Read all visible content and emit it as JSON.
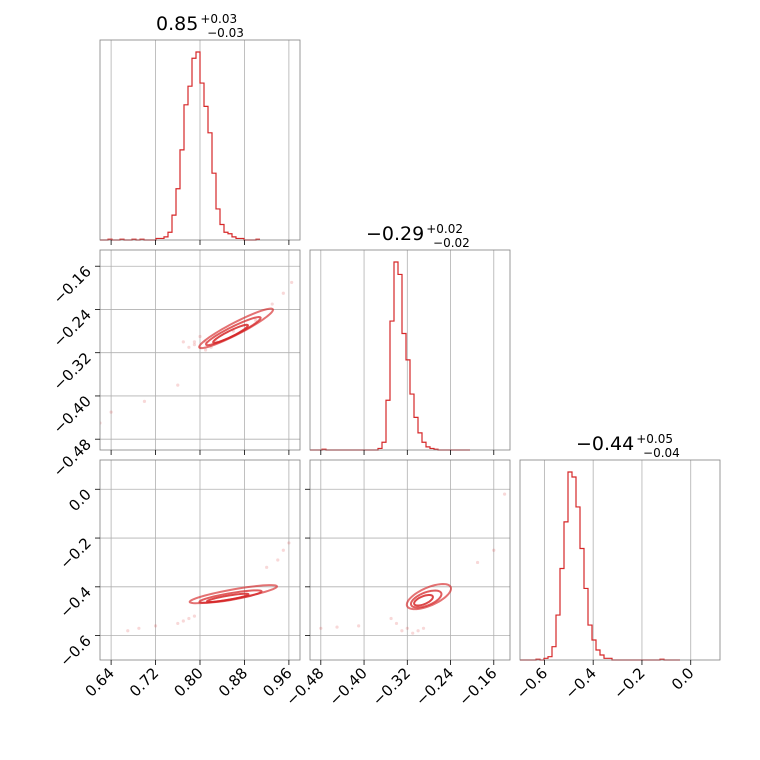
{
  "chart_data": {
    "type": "corner",
    "color": "#d62728",
    "parameters": [
      {
        "title_main": "0.85",
        "title_plus": "+0.03",
        "title_minus": "−0.03",
        "range": [
          0.62,
          0.98
        ],
        "ticks": [
          {
            "value": 0.64,
            "label": "0.64"
          },
          {
            "value": 0.72,
            "label": "0.72"
          },
          {
            "value": 0.8,
            "label": "0.80"
          },
          {
            "value": 0.88,
            "label": "0.88"
          },
          {
            "value": 0.96,
            "label": "0.96"
          }
        ],
        "hist_bin_width": 0.0072,
        "hist_start": 0.62,
        "hist_counts": [
          0,
          0,
          0.5,
          0,
          0,
          0.5,
          0,
          0,
          0.5,
          0,
          0.5,
          0,
          0,
          0,
          1,
          1,
          2,
          5,
          16,
          33,
          58,
          87,
          99,
          117,
          121,
          101,
          86,
          69,
          43,
          20,
          10,
          5,
          4,
          2,
          1,
          1,
          0,
          0,
          0,
          0.5
        ]
      },
      {
        "title_main": "−0.29",
        "title_plus": "+0.02",
        "title_minus": "−0.02",
        "range": [
          -0.5,
          -0.13
        ],
        "ticks": [
          {
            "value": -0.48,
            "label": "−0.48"
          },
          {
            "value": -0.4,
            "label": "−0.40"
          },
          {
            "value": -0.32,
            "label": "−0.32"
          },
          {
            "value": -0.24,
            "label": "−0.24"
          },
          {
            "value": -0.16,
            "label": "−0.16"
          }
        ],
        "hist_bin_width": 0.0074,
        "hist_start": -0.5,
        "hist_counts": [
          0,
          0,
          0,
          0.5,
          0,
          0,
          0,
          0,
          0,
          0,
          0,
          0,
          0,
          0,
          0,
          0,
          0,
          1,
          5,
          32,
          83,
          121,
          113,
          75,
          58,
          36,
          21,
          11,
          5,
          2,
          1,
          0.5,
          0,
          0,
          0,
          0,
          0,
          0,
          0,
          0
        ]
      },
      {
        "title_main": "−0.44",
        "title_plus": "+0.05",
        "title_minus": "−0.04",
        "range": [
          -0.7,
          0.12
        ],
        "ticks": [
          {
            "value": -0.6,
            "label": "−0.6"
          },
          {
            "value": -0.4,
            "label": "−0.4"
          },
          {
            "value": -0.2,
            "label": "−0.2"
          },
          {
            "value": 0.0,
            "label": "0.0"
          }
        ],
        "hist_bin_width": 0.0164,
        "hist_start": -0.7,
        "hist_counts": [
          0,
          0,
          0,
          0,
          0.5,
          0,
          1,
          2,
          8,
          27,
          55,
          83,
          113,
          110,
          92,
          67,
          43,
          21,
          12,
          6,
          3,
          1,
          1,
          0,
          0,
          0,
          0,
          0,
          0,
          0,
          0,
          0,
          0,
          0,
          0,
          0.5,
          0,
          0,
          0,
          0
        ]
      }
    ],
    "pairs": [
      {
        "x_param": 0,
        "y_param": 1,
        "scatter": [
          [
            0.62,
            -0.45
          ],
          [
            0.64,
            -0.43
          ],
          [
            0.7,
            -0.41
          ],
          [
            0.76,
            -0.38
          ],
          [
            0.79,
            -0.3
          ],
          [
            0.8,
            -0.31
          ],
          [
            0.81,
            -0.3
          ],
          [
            0.78,
            -0.31
          ],
          [
            0.82,
            -0.31
          ],
          [
            0.77,
            -0.3
          ],
          [
            0.8,
            -0.29
          ],
          [
            0.83,
            -0.3
          ],
          [
            0.86,
            -0.28
          ],
          [
            0.9,
            -0.26
          ],
          [
            0.93,
            -0.23
          ],
          [
            0.95,
            -0.21
          ],
          [
            0.965,
            -0.19
          ],
          [
            0.79,
            -0.305
          ],
          [
            0.81,
            -0.315
          ]
        ],
        "contours": [
          {
            "center": [
              0.855,
              -0.285
            ],
            "half_major": 0.035,
            "half_minor": 0.0055,
            "angle_deg": 27
          },
          {
            "center": [
              0.86,
              -0.28
            ],
            "half_major": 0.055,
            "half_minor": 0.008,
            "angle_deg": 27
          },
          {
            "center": [
              0.865,
              -0.275
            ],
            "half_major": 0.075,
            "half_minor": 0.011,
            "angle_deg": 28
          }
        ]
      },
      {
        "x_param": 0,
        "y_param": 2,
        "scatter": [
          [
            0.67,
            -0.58
          ],
          [
            0.69,
            -0.57
          ],
          [
            0.72,
            -0.56
          ],
          [
            0.76,
            -0.55
          ],
          [
            0.77,
            -0.54
          ],
          [
            0.78,
            -0.53
          ],
          [
            0.79,
            -0.52
          ],
          [
            0.92,
            -0.32
          ],
          [
            0.94,
            -0.29
          ],
          [
            0.96,
            -0.22
          ],
          [
            0.95,
            -0.25
          ]
        ],
        "contours": [
          {
            "center": [
              0.85,
              -0.445
            ],
            "half_major": 0.04,
            "half_minor": 0.008,
            "angle_deg": 22
          },
          {
            "center": [
              0.855,
              -0.44
            ],
            "half_major": 0.06,
            "half_minor": 0.013,
            "angle_deg": 22
          },
          {
            "center": [
              0.86,
              -0.43
            ],
            "half_major": 0.085,
            "half_minor": 0.018,
            "angle_deg": 23
          }
        ]
      },
      {
        "x_param": 1,
        "y_param": 2,
        "scatter": [
          [
            -0.48,
            -0.57
          ],
          [
            -0.45,
            -0.565
          ],
          [
            -0.41,
            -0.56
          ],
          [
            -0.35,
            -0.53
          ],
          [
            -0.34,
            -0.55
          ],
          [
            -0.33,
            -0.58
          ],
          [
            -0.32,
            -0.57
          ],
          [
            -0.31,
            -0.59
          ],
          [
            -0.3,
            -0.58
          ],
          [
            -0.29,
            -0.57
          ],
          [
            -0.19,
            -0.3
          ],
          [
            -0.16,
            -0.25
          ],
          [
            -0.14,
            -0.02
          ]
        ],
        "contours": [
          {
            "center": [
              -0.29,
              -0.455
            ],
            "half_major": 0.025,
            "half_minor": 0.012,
            "angle_deg": 55
          },
          {
            "center": [
              -0.285,
              -0.45
            ],
            "half_major": 0.04,
            "half_minor": 0.02,
            "angle_deg": 55
          },
          {
            "center": [
              -0.28,
              -0.44
            ],
            "half_major": 0.06,
            "half_minor": 0.027,
            "angle_deg": 55
          }
        ]
      }
    ],
    "grid": true,
    "xlabel": "",
    "ylabel": ""
  }
}
